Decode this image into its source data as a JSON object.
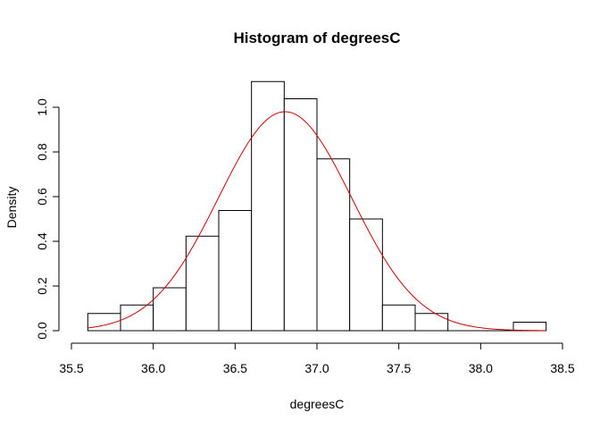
{
  "chart_data": {
    "type": "histogram",
    "title": "Histogram of degreesC",
    "xlabel": "degreesC",
    "ylabel": "Density",
    "xlim": [
      35.5,
      38.5
    ],
    "ylim": [
      0,
      1.0
    ],
    "x_ticks": [
      35.5,
      36.0,
      36.5,
      37.0,
      37.5,
      38.0,
      38.5
    ],
    "x_tick_labels": [
      "35.5",
      "36.0",
      "36.5",
      "37.0",
      "37.5",
      "38.0",
      "38.5"
    ],
    "y_ticks": [
      0.0,
      0.2,
      0.4,
      0.6,
      0.8,
      1.0
    ],
    "y_tick_labels": [
      "0.0",
      "0.2",
      "0.4",
      "0.6",
      "0.8",
      "1.0"
    ],
    "bins": [
      {
        "start": 35.6,
        "end": 35.8,
        "density": 0.077
      },
      {
        "start": 35.8,
        "end": 36.0,
        "density": 0.115
      },
      {
        "start": 36.0,
        "end": 36.2,
        "density": 0.192
      },
      {
        "start": 36.2,
        "end": 36.4,
        "density": 0.423
      },
      {
        "start": 36.4,
        "end": 36.6,
        "density": 0.538
      },
      {
        "start": 36.6,
        "end": 36.8,
        "density": 1.115
      },
      {
        "start": 36.8,
        "end": 37.0,
        "density": 1.038
      },
      {
        "start": 37.0,
        "end": 37.2,
        "density": 0.769
      },
      {
        "start": 37.2,
        "end": 37.4,
        "density": 0.5
      },
      {
        "start": 37.4,
        "end": 37.6,
        "density": 0.115
      },
      {
        "start": 37.6,
        "end": 37.8,
        "density": 0.077
      },
      {
        "start": 37.8,
        "end": 38.0,
        "density": 0.0
      },
      {
        "start": 38.0,
        "end": 38.2,
        "density": 0.0
      },
      {
        "start": 38.2,
        "end": 38.4,
        "density": 0.038
      }
    ],
    "density_curve": {
      "distribution": "normal",
      "mean": 36.805,
      "sd": 0.407,
      "x_range": [
        35.6,
        38.4
      ],
      "color": "#cc0000"
    },
    "grid": false,
    "legend": "none"
  }
}
